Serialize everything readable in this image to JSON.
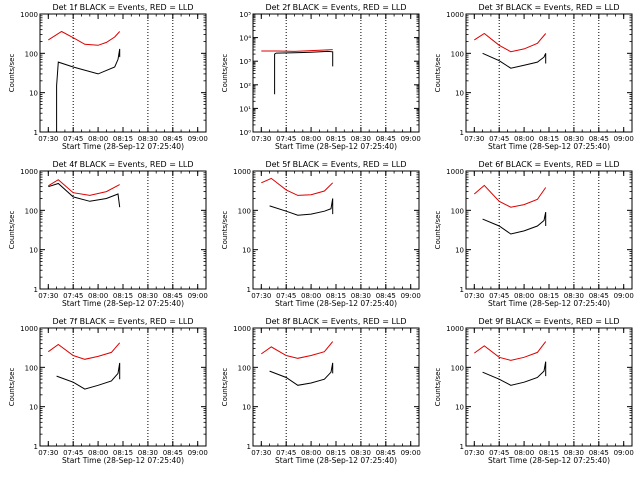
{
  "chart_data": [
    {
      "type": "line",
      "title": "Det 1f BLACK = Events, RED = LLD",
      "xlabel": "Start Time (28-Sep-12 07:25:40)",
      "ylabel": "Counts/sec",
      "ylim": [
        1,
        1000
      ],
      "x_tick_labels": [
        "07:30",
        "07:45",
        "08:00",
        "08:15",
        "08:30",
        "08:45",
        "09:00"
      ],
      "y_tick_labels": [
        "1",
        "10",
        "100",
        "1000"
      ],
      "vlines": [
        "07:45",
        "08:30",
        "08:45"
      ],
      "series": [
        {
          "color": "#000000",
          "x": [
            "07:35",
            "07:35",
            "07:36",
            "07:45",
            "08:00",
            "08:10",
            "08:12",
            "08:13",
            "08:13"
          ],
          "values": [
            1,
            15,
            60,
            45,
            30,
            45,
            70,
            130,
            80
          ]
        },
        {
          "color": "#dd0000",
          "x": [
            "07:30",
            "07:38",
            "07:45",
            "07:52",
            "08:00",
            "08:05",
            "08:10",
            "08:13"
          ],
          "values": [
            220,
            360,
            250,
            170,
            160,
            190,
            260,
            360
          ]
        }
      ]
    },
    {
      "type": "line",
      "title": "Det 2f BLACK = Events, RED = LLD",
      "xlabel": "Start Time (28-Sep-12 07:25:40)",
      "ylabel": "Counts/sec",
      "ylim": [
        1,
        100000
      ],
      "x_tick_labels": [
        "07:30",
        "07:45",
        "08:00",
        "08:15",
        "08:30",
        "08:45",
        "09:00"
      ],
      "y_tick_labels": [
        "10⁰",
        "10¹",
        "10²",
        "10³",
        "10⁴",
        "10⁵"
      ],
      "vlines": [
        "07:45",
        "08:30",
        "08:45"
      ],
      "series": [
        {
          "color": "#000000",
          "x": [
            "07:38",
            "07:38",
            "07:39",
            "07:50",
            "08:00",
            "08:10",
            "08:13",
            "08:13"
          ],
          "values": [
            40,
            2000,
            2200,
            2300,
            2400,
            2600,
            2500,
            600
          ]
        },
        {
          "color": "#dd0000",
          "x": [
            "07:30",
            "07:40",
            "07:50",
            "08:00",
            "08:10",
            "08:13"
          ],
          "values": [
            2700,
            2700,
            2600,
            2800,
            3000,
            3100
          ]
        }
      ]
    },
    {
      "type": "line",
      "title": "Det 3f BLACK = Events, RED = LLD",
      "xlabel": "Start Time (28-Sep-12 07:25:40)",
      "ylabel": "Counts/sec",
      "ylim": [
        1,
        1000
      ],
      "x_tick_labels": [
        "07:30",
        "07:45",
        "08:00",
        "08:15",
        "08:30",
        "08:45",
        "09:00"
      ],
      "y_tick_labels": [
        "1",
        "10",
        "100",
        "1000"
      ],
      "vlines": [
        "07:45",
        "08:30",
        "08:45"
      ],
      "series": [
        {
          "color": "#000000",
          "x": [
            "07:35",
            "07:45",
            "07:52",
            "08:00",
            "08:08",
            "08:12",
            "08:13",
            "08:13"
          ],
          "values": [
            100,
            65,
            42,
            50,
            60,
            80,
            100,
            55
          ]
        },
        {
          "color": "#dd0000",
          "x": [
            "07:30",
            "07:36",
            "07:45",
            "07:52",
            "08:00",
            "08:08",
            "08:13"
          ],
          "values": [
            220,
            320,
            160,
            110,
            130,
            180,
            320
          ]
        }
      ]
    },
    {
      "type": "line",
      "title": "Det 4f BLACK = Events, RED = LLD",
      "xlabel": "Start Time (28-Sep-12 07:25:40)",
      "ylabel": "Counts/sec",
      "ylim": [
        1,
        1000
      ],
      "x_tick_labels": [
        "07:30",
        "07:45",
        "08:00",
        "08:15",
        "08:30",
        "08:45",
        "09:00"
      ],
      "y_tick_labels": [
        "1",
        "10",
        "100",
        "1000"
      ],
      "vlines": [
        "07:45",
        "08:30",
        "08:45"
      ],
      "series": [
        {
          "color": "#000000",
          "x": [
            "07:30",
            "07:36",
            "07:45",
            "07:55",
            "08:05",
            "08:12",
            "08:13"
          ],
          "values": [
            400,
            480,
            220,
            170,
            200,
            260,
            120
          ]
        },
        {
          "color": "#dd0000",
          "x": [
            "07:30",
            "07:36",
            "07:45",
            "07:55",
            "08:05",
            "08:13"
          ],
          "values": [
            420,
            600,
            280,
            240,
            300,
            450
          ]
        }
      ]
    },
    {
      "type": "line",
      "title": "Det 5f BLACK = Events, RED = LLD",
      "xlabel": "Start Time (28-Sep-12 07:25:40)",
      "ylabel": "Counts/sec",
      "ylim": [
        1,
        1000
      ],
      "x_tick_labels": [
        "07:30",
        "07:45",
        "08:00",
        "08:15",
        "08:30",
        "08:45",
        "09:00"
      ],
      "y_tick_labels": [
        "1",
        "10",
        "100",
        "1000"
      ],
      "vlines": [
        "07:45",
        "08:30",
        "08:45"
      ],
      "series": [
        {
          "color": "#000000",
          "x": [
            "07:35",
            "07:45",
            "07:52",
            "08:00",
            "08:08",
            "08:12",
            "08:13",
            "08:13"
          ],
          "values": [
            130,
            95,
            75,
            80,
            95,
            110,
            200,
            80
          ]
        },
        {
          "color": "#dd0000",
          "x": [
            "07:30",
            "07:36",
            "07:45",
            "07:52",
            "08:00",
            "08:08",
            "08:13"
          ],
          "values": [
            500,
            650,
            330,
            240,
            250,
            310,
            500
          ]
        }
      ]
    },
    {
      "type": "line",
      "title": "Det 6f BLACK = Events, RED = LLD",
      "xlabel": "Start Time (28-Sep-12 07:25:40)",
      "ylabel": "Counts/sec",
      "ylim": [
        1,
        1000
      ],
      "x_tick_labels": [
        "07:30",
        "07:45",
        "08:00",
        "08:15",
        "08:30",
        "08:45",
        "09:00"
      ],
      "y_tick_labels": [
        "1",
        "10",
        "100",
        "1000"
      ],
      "vlines": [
        "07:45",
        "08:30",
        "08:45"
      ],
      "series": [
        {
          "color": "#000000",
          "x": [
            "07:35",
            "07:45",
            "07:52",
            "08:00",
            "08:08",
            "08:12",
            "08:13",
            "08:13"
          ],
          "values": [
            60,
            40,
            25,
            30,
            40,
            55,
            90,
            40
          ]
        },
        {
          "color": "#dd0000",
          "x": [
            "07:30",
            "07:36",
            "07:45",
            "07:52",
            "08:00",
            "08:08",
            "08:13"
          ],
          "values": [
            260,
            430,
            170,
            120,
            140,
            190,
            380
          ]
        }
      ]
    },
    {
      "type": "line",
      "title": "Det 7f BLACK = Events, RED = LLD",
      "xlabel": "Start Time (28-Sep-12 07:25:40)",
      "ylabel": "Counts/sec",
      "ylim": [
        1,
        1000
      ],
      "x_tick_labels": [
        "07:30",
        "07:45",
        "08:00",
        "08:15",
        "08:30",
        "08:45",
        "09:00"
      ],
      "y_tick_labels": [
        "1",
        "10",
        "100",
        "1000"
      ],
      "vlines": [
        "07:45",
        "08:30",
        "08:45"
      ],
      "series": [
        {
          "color": "#000000",
          "x": [
            "07:35",
            "07:45",
            "07:52",
            "08:00",
            "08:08",
            "08:12",
            "08:13",
            "08:13"
          ],
          "values": [
            60,
            42,
            28,
            35,
            45,
            70,
            130,
            50
          ]
        },
        {
          "color": "#dd0000",
          "x": [
            "07:30",
            "07:36",
            "07:45",
            "07:52",
            "08:00",
            "08:08",
            "08:13"
          ],
          "values": [
            250,
            380,
            200,
            160,
            190,
            240,
            420
          ]
        }
      ]
    },
    {
      "type": "line",
      "title": "Det 8f BLACK = Events, RED = LLD",
      "xlabel": "Start Time (28-Sep-12 07:25:40)",
      "ylabel": "Counts/sec",
      "ylim": [
        1,
        1000
      ],
      "x_tick_labels": [
        "07:30",
        "07:45",
        "08:00",
        "08:15",
        "08:30",
        "08:45",
        "09:00"
      ],
      "y_tick_labels": [
        "1",
        "10",
        "100",
        "1000"
      ],
      "vlines": [
        "07:45",
        "08:30",
        "08:45"
      ],
      "series": [
        {
          "color": "#000000",
          "x": [
            "07:35",
            "07:45",
            "07:52",
            "08:00",
            "08:08",
            "08:12",
            "08:13",
            "08:13"
          ],
          "values": [
            80,
            55,
            35,
            40,
            50,
            75,
            130,
            70
          ]
        },
        {
          "color": "#dd0000",
          "x": [
            "07:30",
            "07:36",
            "07:45",
            "07:52",
            "08:00",
            "08:08",
            "08:13"
          ],
          "values": [
            220,
            330,
            200,
            170,
            200,
            250,
            450
          ]
        }
      ]
    },
    {
      "type": "line",
      "title": "Det 9f BLACK = Events, RED = LLD",
      "xlabel": "Start Time (28-Sep-12 07:25:40)",
      "ylabel": "Counts/sec",
      "ylim": [
        1,
        1000
      ],
      "x_tick_labels": [
        "07:30",
        "07:45",
        "08:00",
        "08:15",
        "08:30",
        "08:45",
        "09:00"
      ],
      "y_tick_labels": [
        "1",
        "10",
        "100",
        "1000"
      ],
      "vlines": [
        "07:45",
        "08:30",
        "08:45"
      ],
      "series": [
        {
          "color": "#000000",
          "x": [
            "07:35",
            "07:45",
            "07:52",
            "08:00",
            "08:08",
            "08:12",
            "08:13",
            "08:13"
          ],
          "values": [
            75,
            50,
            35,
            42,
            55,
            80,
            140,
            60
          ]
        },
        {
          "color": "#dd0000",
          "x": [
            "07:30",
            "07:36",
            "07:45",
            "07:52",
            "08:00",
            "08:08",
            "08:13"
          ],
          "values": [
            230,
            350,
            180,
            150,
            180,
            240,
            450
          ]
        }
      ]
    }
  ]
}
